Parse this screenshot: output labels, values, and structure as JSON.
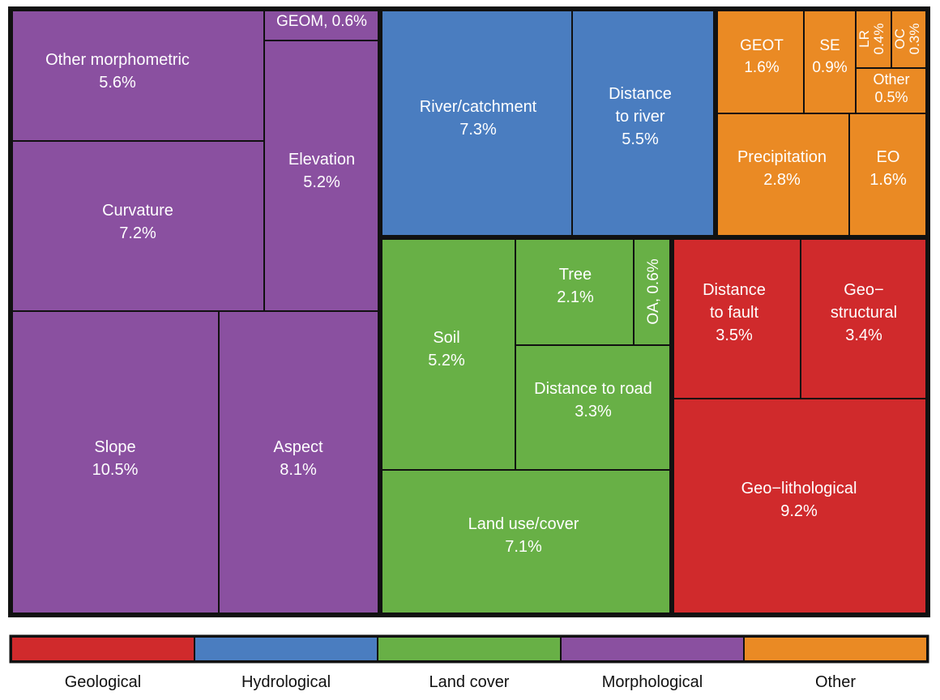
{
  "chart_data": {
    "type": "treemap",
    "unit": "%",
    "groups": [
      {
        "name": "Morphological",
        "color": "#8a50a0",
        "items": [
          {
            "label": "Other morphometric",
            "value": 5.6
          },
          {
            "label": "GEOM",
            "value": 0.6
          },
          {
            "label": "Elevation",
            "value": 5.2
          },
          {
            "label": "Curvature",
            "value": 7.2
          },
          {
            "label": "Slope",
            "value": 10.5
          },
          {
            "label": "Aspect",
            "value": 8.1
          }
        ]
      },
      {
        "name": "Hydrological",
        "color": "#4a7dc0",
        "items": [
          {
            "label": "River/catchment",
            "value": 7.3
          },
          {
            "label": "Distance to river",
            "value": 5.5
          }
        ]
      },
      {
        "name": "Other",
        "color": "#ea8a24",
        "items": [
          {
            "label": "GEOT",
            "value": 1.6
          },
          {
            "label": "SE",
            "value": 0.9
          },
          {
            "label": "LR",
            "value": 0.4
          },
          {
            "label": "OC",
            "value": 0.3
          },
          {
            "label": "Other",
            "value": 0.5
          },
          {
            "label": "Precipitation",
            "value": 2.8
          },
          {
            "label": "EO",
            "value": 1.6
          }
        ]
      },
      {
        "name": "Land cover",
        "color": "#68b046",
        "items": [
          {
            "label": "Soil",
            "value": 5.2
          },
          {
            "label": "Tree",
            "value": 2.1
          },
          {
            "label": "OA",
            "value": 0.6
          },
          {
            "label": "Distance to road",
            "value": 3.3
          },
          {
            "label": "Land use/cover",
            "value": 7.1
          }
        ]
      },
      {
        "name": "Geological",
        "color": "#d02a2c",
        "items": [
          {
            "label": "Distance to fault",
            "value": 3.5
          },
          {
            "label": "Geo−structural",
            "value": 3.4
          },
          {
            "label": "Geo−lithological",
            "value": 9.2
          }
        ]
      }
    ],
    "legend": {
      "placement": "bottom",
      "entries": [
        "Geological",
        "Hydrological",
        "Land cover",
        "Morphological",
        "Other"
      ]
    }
  }
}
